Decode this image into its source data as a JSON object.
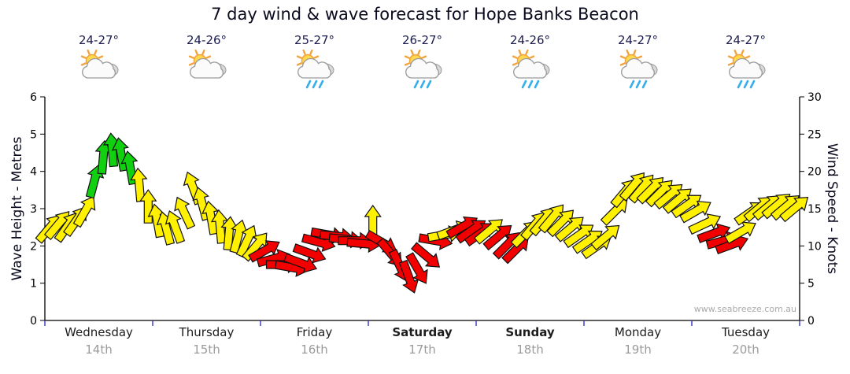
{
  "chart_data": {
    "type": "scatter",
    "style": "wind-arrow-timeseries",
    "title": "7 day wind & wave forecast for Hope Banks Beacon",
    "ylabel_left": "Wave Height - Metres",
    "ylabel_right": "Wind Speed - Knots",
    "ylim_left_metres": [
      0,
      6
    ],
    "ylim_right_knots": [
      0,
      30
    ],
    "y_ticks_metres": [
      0,
      1,
      2,
      3,
      4,
      5,
      6
    ],
    "y_ticks_knots": [
      0,
      5,
      10,
      15,
      20,
      25,
      30
    ],
    "x_range_hours": [
      0,
      168
    ],
    "grid": false,
    "legend": false,
    "point_format": [
      "hour_from_wed_0000",
      "wind_knots",
      "arrow_direction_deg_cw_from_up",
      "color_code"
    ],
    "color_map": {
      "y": "#FFF100",
      "g": "#10D010",
      "r": "#F20000"
    },
    "points": [
      [
        1,
        12.4,
        40,
        "y"
      ],
      [
        3,
        12.9,
        40,
        "y"
      ],
      [
        5,
        12.6,
        35,
        "y"
      ],
      [
        7,
        13.4,
        35,
        "y"
      ],
      [
        9,
        14.7,
        30,
        "y"
      ],
      [
        11,
        18.7,
        15,
        "g"
      ],
      [
        13,
        21.9,
        5,
        "g"
      ],
      [
        15,
        22.9,
        -5,
        "g"
      ],
      [
        17,
        22.3,
        -10,
        "g"
      ],
      [
        19,
        20.5,
        -10,
        "g"
      ],
      [
        21,
        18.2,
        -5,
        "y"
      ],
      [
        23,
        15.3,
        0,
        "y"
      ],
      [
        25,
        13.4,
        -10,
        "y"
      ],
      [
        27,
        12.4,
        -15,
        "y"
      ],
      [
        29,
        12.6,
        -20,
        "y"
      ],
      [
        31,
        14.5,
        -25,
        "y"
      ],
      [
        33,
        17.8,
        -20,
        "y"
      ],
      [
        35,
        15.7,
        -15,
        "y"
      ],
      [
        37,
        13.8,
        -10,
        "y"
      ],
      [
        39,
        12.6,
        -5,
        "y"
      ],
      [
        41,
        11.7,
        5,
        "y"
      ],
      [
        43,
        11.3,
        15,
        "y"
      ],
      [
        45,
        10.7,
        25,
        "y"
      ],
      [
        47,
        10.0,
        40,
        "y"
      ],
      [
        49,
        9.4,
        60,
        "r"
      ],
      [
        51,
        8.3,
        75,
        "r"
      ],
      [
        53,
        7.5,
        90,
        "r"
      ],
      [
        55,
        7.1,
        100,
        "r"
      ],
      [
        57,
        7.7,
        110,
        "r"
      ],
      [
        59,
        9.0,
        110,
        "r"
      ],
      [
        61,
        10.5,
        105,
        "r"
      ],
      [
        63,
        11.5,
        100,
        "r"
      ],
      [
        65,
        11.3,
        95,
        "r"
      ],
      [
        67,
        10.9,
        95,
        "r"
      ],
      [
        69,
        10.7,
        90,
        "r"
      ],
      [
        71,
        10.3,
        95,
        "r"
      ],
      [
        73,
        13.2,
        0,
        "y"
      ],
      [
        75,
        10.5,
        120,
        "r"
      ],
      [
        77,
        9.0,
        140,
        "r"
      ],
      [
        79,
        7.3,
        155,
        "r"
      ],
      [
        81,
        5.8,
        160,
        "r"
      ],
      [
        83,
        6.9,
        150,
        "r"
      ],
      [
        85,
        8.6,
        130,
        "r"
      ],
      [
        87,
        10.7,
        100,
        "r"
      ],
      [
        89,
        11.5,
        80,
        "y"
      ],
      [
        91,
        12.1,
        70,
        "y"
      ],
      [
        93,
        12.6,
        60,
        "r"
      ],
      [
        95,
        12.1,
        55,
        "r"
      ],
      [
        97,
        11.7,
        55,
        "r"
      ],
      [
        99,
        12.1,
        50,
        "y"
      ],
      [
        101,
        11.3,
        50,
        "r"
      ],
      [
        103,
        10.2,
        45,
        "r"
      ],
      [
        105,
        9.6,
        45,
        "r"
      ],
      [
        107,
        11.7,
        45,
        "y"
      ],
      [
        109,
        12.8,
        40,
        "y"
      ],
      [
        111,
        13.4,
        40,
        "y"
      ],
      [
        113,
        13.8,
        40,
        "y"
      ],
      [
        115,
        13.2,
        45,
        "y"
      ],
      [
        117,
        12.4,
        50,
        "y"
      ],
      [
        119,
        11.5,
        55,
        "y"
      ],
      [
        121,
        10.7,
        55,
        "y"
      ],
      [
        123,
        10.0,
        55,
        "y"
      ],
      [
        125,
        11.3,
        50,
        "y"
      ],
      [
        127,
        14.7,
        45,
        "y"
      ],
      [
        129,
        17.2,
        40,
        "y"
      ],
      [
        131,
        18.1,
        40,
        "y"
      ],
      [
        133,
        17.8,
        40,
        "y"
      ],
      [
        135,
        17.6,
        45,
        "y"
      ],
      [
        137,
        17.2,
        45,
        "y"
      ],
      [
        139,
        16.8,
        50,
        "y"
      ],
      [
        141,
        16.2,
        50,
        "y"
      ],
      [
        143,
        15.5,
        55,
        "y"
      ],
      [
        145,
        14.7,
        60,
        "y"
      ],
      [
        147,
        13.0,
        65,
        "y"
      ],
      [
        149,
        11.7,
        70,
        "r"
      ],
      [
        151,
        10.7,
        75,
        "r"
      ],
      [
        153,
        10.2,
        70,
        "r"
      ],
      [
        155,
        11.9,
        60,
        "y"
      ],
      [
        157,
        14.5,
        55,
        "y"
      ],
      [
        159,
        15.1,
        50,
        "y"
      ],
      [
        161,
        15.3,
        50,
        "y"
      ],
      [
        163,
        15.5,
        50,
        "y"
      ],
      [
        165,
        15.3,
        50,
        "y"
      ],
      [
        167,
        15.1,
        50,
        "y"
      ]
    ]
  },
  "days": [
    {
      "name": "Wednesday",
      "date": "14th",
      "temp": "24-27°",
      "icon": "sun-cloud",
      "bold": false
    },
    {
      "name": "Thursday",
      "date": "15th",
      "temp": "24-26°",
      "icon": "sun-cloud",
      "bold": false
    },
    {
      "name": "Friday",
      "date": "16th",
      "temp": "25-27°",
      "icon": "sun-cloud-rain",
      "bold": false
    },
    {
      "name": "Saturday",
      "date": "17th",
      "temp": "26-27°",
      "icon": "sun-cloud-rain",
      "bold": true
    },
    {
      "name": "Sunday",
      "date": "18th",
      "temp": "24-26°",
      "icon": "sun-cloud-rain",
      "bold": true
    },
    {
      "name": "Monday",
      "date": "19th",
      "temp": "24-27°",
      "icon": "sun-cloud-rain",
      "bold": false
    },
    {
      "name": "Tuesday",
      "date": "20th",
      "temp": "24-27°",
      "icon": "sun-cloud-rain",
      "bold": false
    }
  ],
  "watermark": "www.seabreeze.com.au"
}
